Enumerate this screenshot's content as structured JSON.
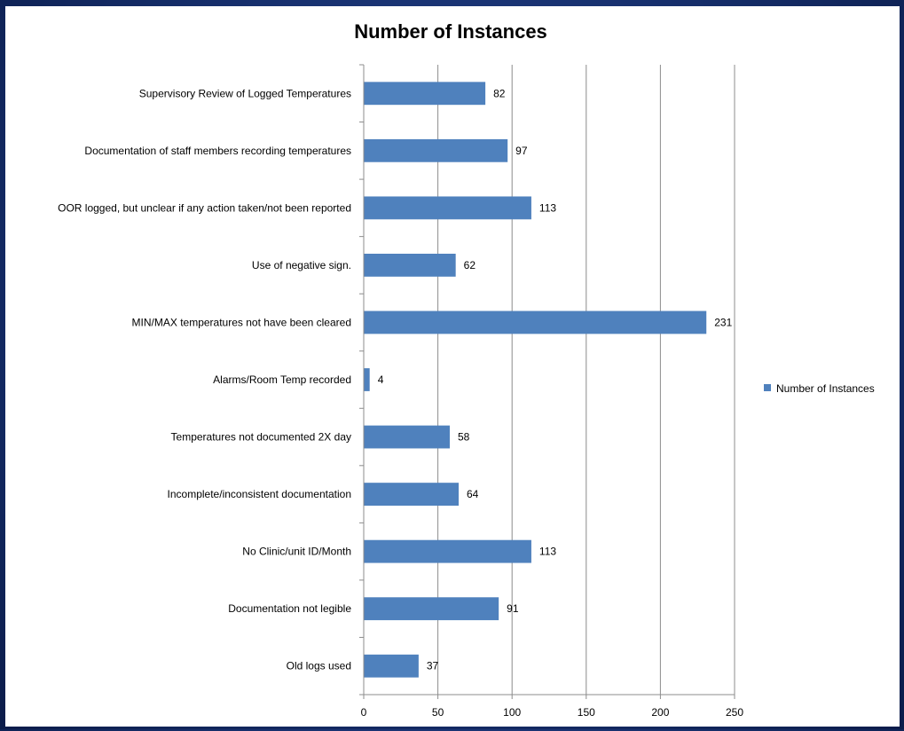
{
  "chart_data": {
    "type": "bar",
    "orientation": "horizontal",
    "title": "Number of Instances",
    "categories": [
      "Supervisory Review of Logged Temperatures",
      "Documentation of staff members recording temperatures",
      "OOR logged, but unclear if any action taken/not been reported",
      "Use of negative sign.",
      "MIN/MAX temperatures not have been cleared",
      "Alarms/Room Temp recorded",
      "Temperatures not documented 2X day",
      "Incomplete/inconsistent documentation",
      "No Clinic/unit ID/Month",
      "Documentation not legible",
      "Old logs used"
    ],
    "series": [
      {
        "name": "Number of Instances",
        "values": [
          82,
          97,
          113,
          62,
          231,
          4,
          58,
          64,
          113,
          91,
          37
        ],
        "color": "#4f81bd"
      }
    ],
    "xlim": [
      0,
      250
    ],
    "xticks": [
      0,
      50,
      100,
      150,
      200,
      250
    ],
    "grid": true,
    "data_labels": true,
    "legend": {
      "position": "right"
    }
  }
}
